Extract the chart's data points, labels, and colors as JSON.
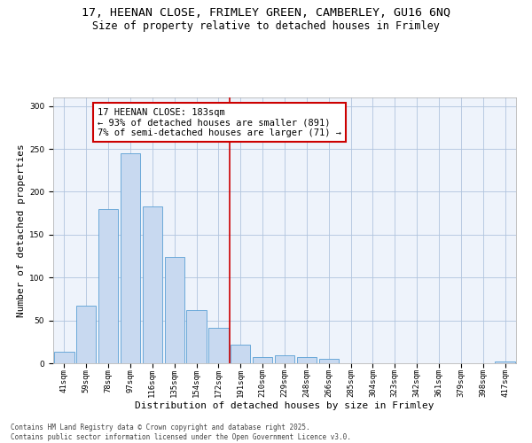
{
  "title_line1": "17, HEENAN CLOSE, FRIMLEY GREEN, CAMBERLEY, GU16 6NQ",
  "title_line2": "Size of property relative to detached houses in Frimley",
  "xlabel": "Distribution of detached houses by size in Frimley",
  "ylabel": "Number of detached properties",
  "categories": [
    "41sqm",
    "59sqm",
    "78sqm",
    "97sqm",
    "116sqm",
    "135sqm",
    "154sqm",
    "172sqm",
    "191sqm",
    "210sqm",
    "229sqm",
    "248sqm",
    "266sqm",
    "285sqm",
    "304sqm",
    "323sqm",
    "342sqm",
    "361sqm",
    "379sqm",
    "398sqm",
    "417sqm"
  ],
  "values": [
    13,
    67,
    180,
    245,
    183,
    124,
    62,
    41,
    22,
    7,
    9,
    7,
    5,
    0,
    0,
    0,
    0,
    0,
    0,
    0,
    2
  ],
  "bar_color": "#c8d9f0",
  "bar_edge_color": "#5a9fd4",
  "vline_color": "#cc0000",
  "annotation_text": "17 HEENAN CLOSE: 183sqm\n← 93% of detached houses are smaller (891)\n7% of semi-detached houses are larger (71) →",
  "annotation_box_color": "#cc0000",
  "ylim": [
    0,
    310
  ],
  "yticks": [
    0,
    50,
    100,
    150,
    200,
    250,
    300
  ],
  "grid_color": "#b0c4de",
  "background_color": "#eef3fb",
  "footer": "Contains HM Land Registry data © Crown copyright and database right 2025.\nContains public sector information licensed under the Open Government Licence v3.0.",
  "title_fontsize": 9.5,
  "subtitle_fontsize": 8.5,
  "xlabel_fontsize": 8,
  "ylabel_fontsize": 8,
  "tick_fontsize": 6.5,
  "annotation_fontsize": 7.5,
  "footer_fontsize": 5.5
}
